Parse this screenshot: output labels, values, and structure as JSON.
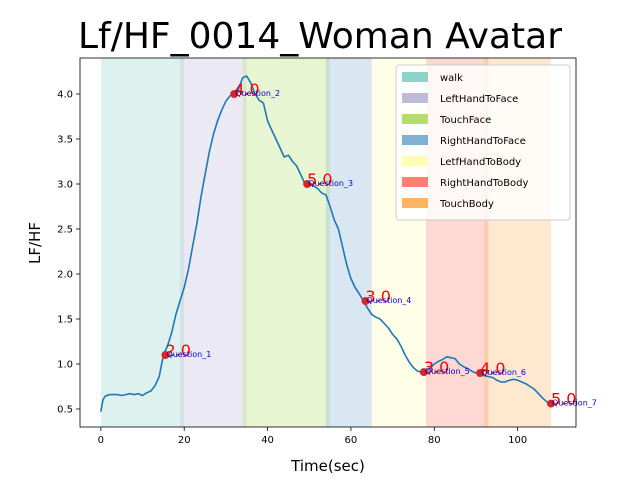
{
  "chart_data": {
    "type": "line",
    "title": "Lf/HF_0014_Woman Avatar",
    "xlabel": "Time(sec)",
    "ylabel": "LF/HF",
    "xlim": [
      -5,
      114
    ],
    "ylim": [
      0.3,
      4.4
    ],
    "xticks": [
      0,
      20,
      40,
      60,
      80,
      100
    ],
    "yticks": [
      0.5,
      1.0,
      1.5,
      2.0,
      2.5,
      3.0,
      3.5,
      4.0
    ],
    "xtick_labels": [
      "0",
      "20",
      "40",
      "60",
      "80",
      "100"
    ],
    "ytick_labels": [
      "0.5",
      "1.0",
      "1.5",
      "2.0",
      "2.5",
      "3.0",
      "3.5",
      "4.0"
    ],
    "grid": false,
    "legend_position": "top-right",
    "series_color": "#1f77b4",
    "marker_color": "#d62728",
    "regions": [
      {
        "name": "walk",
        "start": 0,
        "end": 20,
        "color": "#8dd3c7"
      },
      {
        "name": "LeftHandToFace",
        "start": 19,
        "end": 35,
        "color": "#bebada"
      },
      {
        "name": "TouchFace",
        "start": 34,
        "end": 55,
        "color": "#b3de69"
      },
      {
        "name": "RightHandToFace",
        "start": 54,
        "end": 65,
        "color": "#80b1d3"
      },
      {
        "name": "LetfHandToBody",
        "start": 65,
        "end": 78,
        "color": "#ffffb3"
      },
      {
        "name": "RightHandToBody",
        "start": 78,
        "end": 93,
        "color": "#fb8072"
      },
      {
        "name": "TouchBody",
        "start": 92,
        "end": 108,
        "color": "#fdb462"
      }
    ],
    "line": {
      "x": [
        0,
        0.5,
        1,
        2,
        3,
        4,
        5,
        6,
        7,
        8,
        9,
        10,
        11,
        12,
        13,
        14,
        15,
        16,
        17,
        18,
        19,
        20,
        21,
        22,
        23,
        24,
        25,
        26,
        27,
        28,
        29,
        30,
        31,
        32,
        33,
        34,
        35,
        36,
        37,
        38,
        39,
        40,
        41,
        42,
        43,
        44,
        45,
        46,
        47,
        48,
        49,
        50,
        51,
        52,
        53,
        54,
        55,
        56,
        57,
        58,
        59,
        60,
        61,
        62,
        63,
        64,
        65,
        66,
        67,
        68,
        69,
        70,
        71,
        72,
        73,
        74,
        75,
        76,
        77,
        78,
        79,
        80,
        81,
        82,
        83,
        84,
        85,
        86,
        87,
        88,
        89,
        90,
        91,
        92,
        93,
        94,
        95,
        96,
        97,
        98,
        99,
        100,
        101,
        102,
        103,
        104,
        105,
        106,
        107,
        108
      ],
      "y": [
        0.47,
        0.6,
        0.64,
        0.66,
        0.66,
        0.66,
        0.65,
        0.66,
        0.67,
        0.66,
        0.67,
        0.65,
        0.68,
        0.7,
        0.76,
        0.86,
        1.1,
        1.2,
        1.35,
        1.55,
        1.7,
        1.85,
        2.05,
        2.3,
        2.55,
        2.85,
        3.1,
        3.35,
        3.55,
        3.7,
        3.82,
        3.92,
        3.98,
        4.0,
        4.05,
        4.18,
        4.2,
        4.12,
        4.0,
        3.93,
        3.9,
        3.7,
        3.6,
        3.5,
        3.4,
        3.3,
        3.32,
        3.25,
        3.2,
        3.1,
        3.0,
        3.02,
        2.98,
        2.95,
        2.9,
        2.88,
        2.75,
        2.6,
        2.5,
        2.3,
        2.1,
        1.95,
        1.85,
        1.78,
        1.7,
        1.62,
        1.55,
        1.52,
        1.5,
        1.45,
        1.4,
        1.33,
        1.28,
        1.2,
        1.1,
        1.02,
        0.96,
        0.92,
        0.91,
        0.92,
        0.95,
        1.0,
        1.03,
        1.05,
        1.08,
        1.07,
        1.06,
        1.0,
        0.97,
        0.95,
        0.92,
        0.9,
        0.88,
        0.87,
        0.86,
        0.85,
        0.82,
        0.8,
        0.8,
        0.82,
        0.83,
        0.82,
        0.8,
        0.78,
        0.75,
        0.72,
        0.67,
        0.62,
        0.58,
        0.56
      ]
    },
    "annotations": [
      {
        "x": 15.5,
        "y": 1.1,
        "question": "Question_1",
        "score": "2.0"
      },
      {
        "x": 32,
        "y": 4.0,
        "question": "Question_2",
        "score": "4.0"
      },
      {
        "x": 49.5,
        "y": 3.0,
        "question": "Question_3",
        "score": "5.0"
      },
      {
        "x": 63.5,
        "y": 1.7,
        "question": "Question_4",
        "score": "3.0"
      },
      {
        "x": 77.5,
        "y": 0.91,
        "question": "Question_5",
        "score": "3.0"
      },
      {
        "x": 91,
        "y": 0.9,
        "question": "Question_6",
        "score": "4.0"
      },
      {
        "x": 108,
        "y": 0.56,
        "question": "Question_7",
        "score": "5.0"
      }
    ]
  }
}
